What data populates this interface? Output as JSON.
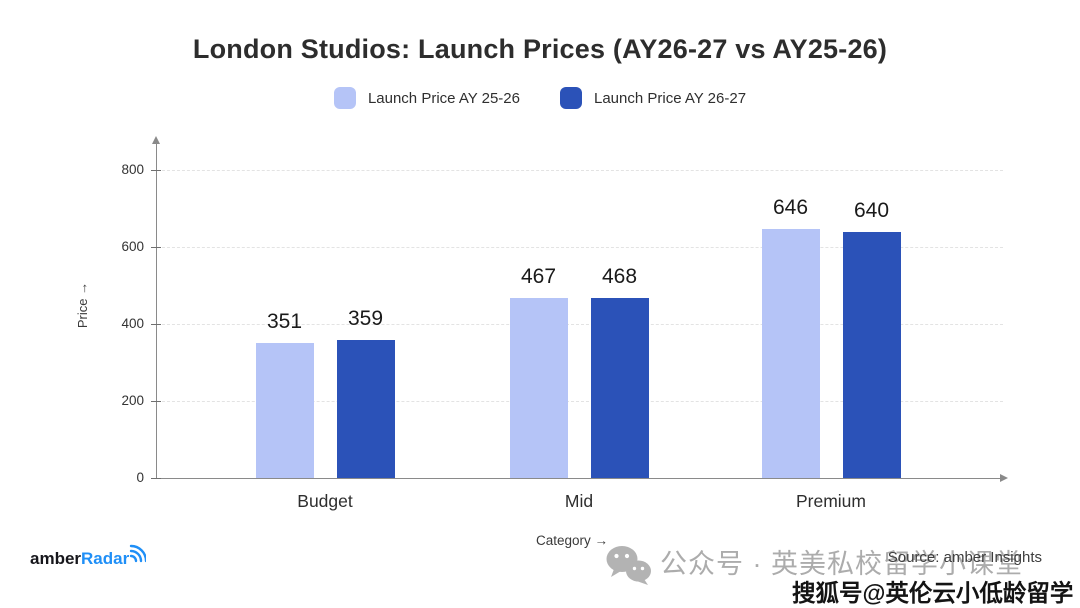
{
  "title": "London Studios: Launch Prices (AY26-27 vs AY25-26)",
  "chart_data": {
    "type": "bar",
    "categories": [
      "Budget",
      "Mid",
      "Premium"
    ],
    "series": [
      {
        "name": "Launch Price AY 25-26",
        "color": "#b5c4f7",
        "values": [
          351,
          467,
          646
        ]
      },
      {
        "name": "Launch Price AY 26-27",
        "color": "#2b52b8",
        "values": [
          359,
          468,
          640
        ]
      }
    ],
    "title": "London Studios: Launch Prices (AY26-27 vs AY25-26)",
    "xlabel": "Category →",
    "ylabel": "Price →",
    "yticks": [
      0,
      200,
      400,
      600,
      800
    ],
    "ylim": [
      0,
      880
    ],
    "grid": "horizontal-dashed",
    "legend_position": "top-center"
  },
  "footer": {
    "logo_prefix": "amber",
    "logo_suffix": "Radar",
    "source": "Source: amber Insights",
    "wechat_watermark": "公众号 · 英美私校留学小课堂",
    "sohu_watermark": "搜狐号@英伦云小低龄留学"
  },
  "colors": {
    "series_ay2526": "#b5c4f7",
    "series_ay2627": "#2b52b8",
    "logo_blue": "#1f8ff7",
    "axis_gray": "#8a8a8a",
    "watermark_gray": "#acacac"
  }
}
